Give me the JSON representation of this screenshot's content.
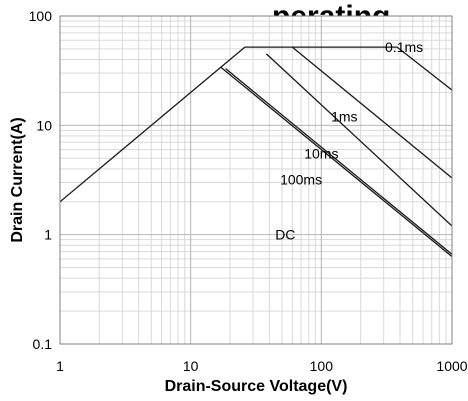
{
  "chart_data": {
    "type": "line",
    "title": "...perating...",
    "xlabel": "Drain-Source Voltage(V)",
    "ylabel": "Drain Current(A)",
    "xscale": "log",
    "yscale": "log",
    "xlim": [
      1,
      1000
    ],
    "ylim": [
      0.1,
      100
    ],
    "grid": true,
    "x_ticks": [
      "1",
      "10",
      "100",
      "1000"
    ],
    "y_ticks": [
      "0.1",
      "1",
      "10",
      "100"
    ],
    "series": [
      {
        "name": "0.1ms",
        "x": [
          1,
          17,
          26,
          380,
          1000
        ],
        "y": [
          2,
          34,
          52,
          52,
          21
        ]
      },
      {
        "name": "1ms",
        "x": [
          60,
          1000
        ],
        "y": [
          52,
          3.3
        ]
      },
      {
        "name": "10ms",
        "x": [
          38,
          1000
        ],
        "y": [
          45,
          1.2
        ]
      },
      {
        "name": "100ms",
        "x": [
          18.5,
          1000
        ],
        "y": [
          33,
          0.66
        ]
      },
      {
        "name": "DC",
        "x": [
          17,
          1000
        ],
        "y": [
          34,
          0.63
        ]
      }
    ],
    "annotations": [
      {
        "text": "0.1ms",
        "x": 430,
        "y": 52
      },
      {
        "text": "1ms",
        "x": 150,
        "y": 12
      },
      {
        "text": "10ms",
        "x": 100,
        "y": 5.5
      },
      {
        "text": "100ms",
        "x": 70,
        "y": 3.2
      },
      {
        "text": "DC",
        "x": 53,
        "y": 1.0
      }
    ]
  }
}
